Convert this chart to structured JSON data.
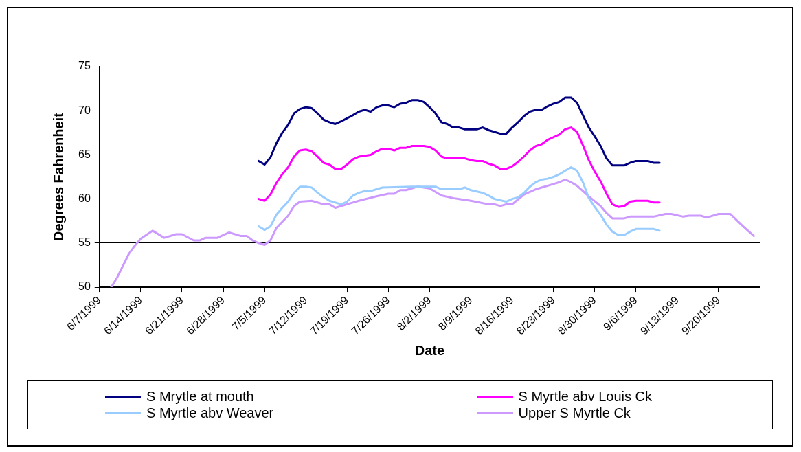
{
  "chart_data": {
    "type": "line",
    "xlabel": "Date",
    "ylabel": "Degrees Fahrenheit",
    "xlim": [
      "1999-06-07",
      "1999-09-27"
    ],
    "xticks": [
      {
        "value": "1999-06-07",
        "label": "6/7/1999"
      },
      {
        "value": "1999-06-14",
        "label": "6/14/1999"
      },
      {
        "value": "1999-06-21",
        "label": "6/21/1999"
      },
      {
        "value": "1999-06-28",
        "label": "6/28/1999"
      },
      {
        "value": "1999-07-05",
        "label": "7/5/1999"
      },
      {
        "value": "1999-07-12",
        "label": "7/12/1999"
      },
      {
        "value": "1999-07-19",
        "label": "7/19/1999"
      },
      {
        "value": "1999-07-26",
        "label": "7/26/1999"
      },
      {
        "value": "1999-08-02",
        "label": "8/2/1999"
      },
      {
        "value": "1999-08-09",
        "label": "8/9/1999"
      },
      {
        "value": "1999-08-16",
        "label": "8/16/1999"
      },
      {
        "value": "1999-08-23",
        "label": "8/23/1999"
      },
      {
        "value": "1999-08-30",
        "label": "8/30/1999"
      },
      {
        "value": "1999-09-06",
        "label": "9/6/1999"
      },
      {
        "value": "1999-09-13",
        "label": "9/13/1999"
      },
      {
        "value": "1999-09-20",
        "label": "9/20/1999"
      },
      {
        "value": "1999-09-27",
        "label": null
      }
    ],
    "ylim": [
      50,
      75
    ],
    "yticks": [
      50,
      55,
      60,
      65,
      70,
      75
    ],
    "grid": "y",
    "legend": "bottom",
    "marker": "none",
    "line_style": "solid",
    "series": [
      {
        "name": "S Mrytle at mouth",
        "color": "#000080",
        "x": [
          "1999-07-04",
          "1999-07-05",
          "1999-07-06",
          "1999-07-07",
          "1999-07-08",
          "1999-07-09",
          "1999-07-10",
          "1999-07-11",
          "1999-07-12",
          "1999-07-13",
          "1999-07-14",
          "1999-07-15",
          "1999-07-16",
          "1999-07-17",
          "1999-07-18",
          "1999-07-20",
          "1999-07-21",
          "1999-07-22",
          "1999-07-23",
          "1999-07-24",
          "1999-07-25",
          "1999-07-26",
          "1999-07-27",
          "1999-07-28",
          "1999-07-29",
          "1999-07-30",
          "1999-07-31",
          "1999-08-01",
          "1999-08-02",
          "1999-08-03",
          "1999-08-04",
          "1999-08-05",
          "1999-08-06",
          "1999-08-07",
          "1999-08-08",
          "1999-08-10",
          "1999-08-11",
          "1999-08-12",
          "1999-08-13",
          "1999-08-14",
          "1999-08-15",
          "1999-08-16",
          "1999-08-17",
          "1999-08-18",
          "1999-08-19",
          "1999-08-20",
          "1999-08-21",
          "1999-08-22",
          "1999-08-23",
          "1999-08-24",
          "1999-08-25",
          "1999-08-26",
          "1999-08-27",
          "1999-08-28",
          "1999-08-29",
          "1999-08-30",
          "1999-08-31",
          "1999-09-01",
          "1999-09-02",
          "1999-09-04",
          "1999-09-05",
          "1999-09-06",
          "1999-09-08",
          "1999-09-09",
          "1999-09-10"
        ],
        "values": [
          64.3,
          63.9,
          64.7,
          66.3,
          67.5,
          68.4,
          69.7,
          70.2,
          70.4,
          70.3,
          69.7,
          69.0,
          68.7,
          68.5,
          68.8,
          69.5,
          69.9,
          70.1,
          69.9,
          70.4,
          70.6,
          70.6,
          70.4,
          70.8,
          70.9,
          71.2,
          71.2,
          71.0,
          70.4,
          69.7,
          68.7,
          68.5,
          68.1,
          68.1,
          67.9,
          67.9,
          68.1,
          67.8,
          67.6,
          67.4,
          67.4,
          68.1,
          68.7,
          69.4,
          69.9,
          70.1,
          70.1,
          70.5,
          70.8,
          71.0,
          71.5,
          71.5,
          70.9,
          69.5,
          68.1,
          67.1,
          66.0,
          64.6,
          63.8,
          63.8,
          64.1,
          64.3,
          64.3,
          64.1,
          64.1
        ]
      },
      {
        "name": "S Myrtle abv Louis Ck",
        "color": "#ff00ff",
        "x": [
          "1999-07-04",
          "1999-07-05",
          "1999-07-06",
          "1999-07-07",
          "1999-07-08",
          "1999-07-09",
          "1999-07-10",
          "1999-07-11",
          "1999-07-12",
          "1999-07-13",
          "1999-07-14",
          "1999-07-15",
          "1999-07-16",
          "1999-07-17",
          "1999-07-18",
          "1999-07-19",
          "1999-07-20",
          "1999-07-21",
          "1999-07-22",
          "1999-07-23",
          "1999-07-24",
          "1999-07-25",
          "1999-07-26",
          "1999-07-27",
          "1999-07-28",
          "1999-07-29",
          "1999-07-30",
          "1999-08-01",
          "1999-08-02",
          "1999-08-03",
          "1999-08-04",
          "1999-08-05",
          "1999-08-07",
          "1999-08-08",
          "1999-08-09",
          "1999-08-10",
          "1999-08-11",
          "1999-08-12",
          "1999-08-13",
          "1999-08-14",
          "1999-08-15",
          "1999-08-16",
          "1999-08-17",
          "1999-08-18",
          "1999-08-19",
          "1999-08-20",
          "1999-08-21",
          "1999-08-22",
          "1999-08-23",
          "1999-08-24",
          "1999-08-25",
          "1999-08-26",
          "1999-08-27",
          "1999-08-28",
          "1999-08-29",
          "1999-08-30",
          "1999-08-31",
          "1999-09-01",
          "1999-09-02",
          "1999-09-03",
          "1999-09-04",
          "1999-09-05",
          "1999-09-06",
          "1999-09-08",
          "1999-09-09",
          "1999-09-10"
        ],
        "values": [
          60.0,
          59.8,
          60.5,
          61.8,
          62.8,
          63.6,
          64.8,
          65.5,
          65.6,
          65.4,
          64.8,
          64.1,
          63.9,
          63.4,
          63.4,
          63.9,
          64.5,
          64.8,
          64.9,
          65.0,
          65.4,
          65.7,
          65.7,
          65.5,
          65.8,
          65.8,
          66.0,
          66.0,
          65.9,
          65.5,
          64.8,
          64.6,
          64.6,
          64.6,
          64.4,
          64.3,
          64.3,
          64.0,
          63.8,
          63.4,
          63.4,
          63.7,
          64.2,
          64.8,
          65.5,
          66.0,
          66.2,
          66.7,
          67.0,
          67.3,
          67.9,
          68.1,
          67.6,
          66.1,
          64.4,
          63.1,
          62.0,
          60.6,
          59.4,
          59.1,
          59.2,
          59.7,
          59.8,
          59.8,
          59.6,
          59.6
        ]
      },
      {
        "name": "S Myrtle abv Weaver",
        "color": "#99ccff",
        "x": [
          "1999-07-04",
          "1999-07-05",
          "1999-07-06",
          "1999-07-07",
          "1999-07-08",
          "1999-07-09",
          "1999-07-10",
          "1999-07-11",
          "1999-07-12",
          "1999-07-13",
          "1999-07-14",
          "1999-07-15",
          "1999-07-16",
          "1999-07-18",
          "1999-07-19",
          "1999-07-20",
          "1999-07-21",
          "1999-07-22",
          "1999-07-23",
          "1999-07-24",
          "1999-07-25",
          "1999-07-30",
          "1999-08-03",
          "1999-08-04",
          "1999-08-07",
          "1999-08-08",
          "1999-08-09",
          "1999-08-11",
          "1999-08-12",
          "1999-08-13",
          "1999-08-15",
          "1999-08-16",
          "1999-08-17",
          "1999-08-18",
          "1999-08-19",
          "1999-08-20",
          "1999-08-21",
          "1999-08-22",
          "1999-08-23",
          "1999-08-24",
          "1999-08-25",
          "1999-08-26",
          "1999-08-27",
          "1999-08-28",
          "1999-08-29",
          "1999-08-30",
          "1999-08-31",
          "1999-09-01",
          "1999-09-02",
          "1999-09-03",
          "1999-09-04",
          "1999-09-05",
          "1999-09-06",
          "1999-09-09",
          "1999-09-10"
        ],
        "values": [
          56.9,
          56.5,
          56.9,
          58.2,
          59.0,
          59.7,
          60.7,
          61.4,
          61.4,
          61.3,
          60.7,
          60.2,
          59.8,
          59.4,
          59.7,
          60.4,
          60.7,
          60.9,
          60.9,
          61.1,
          61.3,
          61.4,
          61.4,
          61.1,
          61.1,
          61.3,
          61.0,
          60.7,
          60.4,
          60.0,
          59.7,
          60.0,
          60.2,
          60.7,
          61.4,
          61.9,
          62.2,
          62.3,
          62.5,
          62.8,
          63.2,
          63.6,
          63.2,
          61.9,
          60.1,
          59.1,
          58.2,
          57.1,
          56.3,
          55.9,
          55.9,
          56.3,
          56.6,
          56.6,
          56.4
        ]
      },
      {
        "name": "Upper S Myrtle Ck",
        "color": "#cc99ff",
        "x": [
          "1999-06-09",
          "1999-06-10",
          "1999-06-12",
          "1999-06-13",
          "1999-06-14",
          "1999-06-16",
          "1999-06-18",
          "1999-06-20",
          "1999-06-21",
          "1999-06-23",
          "1999-06-24",
          "1999-06-25",
          "1999-06-27",
          "1999-06-29",
          "1999-07-01",
          "1999-07-02",
          "1999-07-03",
          "1999-07-04",
          "1999-07-05",
          "1999-07-06",
          "1999-07-07",
          "1999-07-09",
          "1999-07-10",
          "1999-07-11",
          "1999-07-13",
          "1999-07-15",
          "1999-07-16",
          "1999-07-17",
          "1999-07-19",
          "1999-07-21",
          "1999-07-24",
          "1999-07-26",
          "1999-07-27",
          "1999-07-28",
          "1999-07-29",
          "1999-07-31",
          "1999-08-02",
          "1999-08-04",
          "1999-08-06",
          "1999-08-07",
          "1999-08-08",
          "1999-08-09",
          "1999-08-12",
          "1999-08-13",
          "1999-08-14",
          "1999-08-15",
          "1999-08-16",
          "1999-08-18",
          "1999-08-20",
          "1999-08-21",
          "1999-08-23",
          "1999-08-24",
          "1999-08-25",
          "1999-08-26",
          "1999-08-27",
          "1999-08-29",
          "1999-08-31",
          "1999-09-01",
          "1999-09-02",
          "1999-09-04",
          "1999-09-05",
          "1999-09-09",
          "1999-09-11",
          "1999-09-12",
          "1999-09-14",
          "1999-09-15",
          "1999-09-17",
          "1999-09-18",
          "1999-09-20",
          "1999-09-22",
          "1999-09-24",
          "1999-09-26"
        ],
        "values": [
          50.0,
          51.1,
          53.8,
          54.7,
          55.5,
          56.4,
          55.6,
          56.0,
          56.0,
          55.3,
          55.3,
          55.6,
          55.6,
          56.2,
          55.8,
          55.8,
          55.3,
          55.0,
          54.8,
          55.3,
          56.7,
          58.1,
          59.2,
          59.7,
          59.8,
          59.4,
          59.4,
          59.0,
          59.4,
          59.8,
          60.3,
          60.6,
          60.6,
          61.0,
          61.0,
          61.4,
          61.2,
          60.4,
          60.1,
          60.0,
          59.9,
          59.8,
          59.4,
          59.4,
          59.2,
          59.4,
          59.4,
          60.5,
          61.1,
          61.3,
          61.7,
          61.9,
          62.2,
          61.9,
          61.5,
          60.3,
          59.2,
          58.4,
          57.8,
          57.8,
          58.0,
          58.0,
          58.3,
          58.3,
          58.0,
          58.1,
          58.1,
          57.9,
          58.3,
          58.3,
          57.0,
          55.8
        ]
      }
    ]
  }
}
